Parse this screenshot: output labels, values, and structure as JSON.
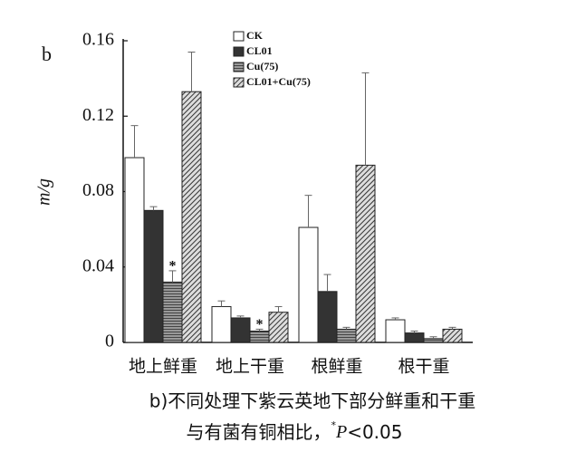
{
  "chart_data": {
    "type": "bar",
    "panel_label": "b",
    "y_label": "m/g",
    "categories": [
      "地上鲜重",
      "地上干重",
      "根鲜重",
      "根干重"
    ],
    "series": [
      {
        "name": "CK",
        "color": "#ffffff",
        "pattern": "solid",
        "values": [
          0.098,
          0.019,
          0.061,
          0.012
        ],
        "errors": [
          0.017,
          0.003,
          0.017,
          0.001
        ],
        "annotations": [
          null,
          null,
          null,
          null
        ]
      },
      {
        "name": "CL01",
        "color": "#333333",
        "pattern": "solid",
        "values": [
          0.07,
          0.013,
          0.027,
          0.005
        ],
        "errors": [
          0.002,
          0.001,
          0.009,
          0.001
        ],
        "annotations": [
          null,
          null,
          null,
          null
        ]
      },
      {
        "name": "Cu(75)",
        "color": "#777777",
        "pattern": "horizontal",
        "values": [
          0.032,
          0.006,
          0.007,
          0.002
        ],
        "errors": [
          0.006,
          0.001,
          0.001,
          0.001
        ],
        "annotations": [
          "*",
          "*",
          null,
          null
        ]
      },
      {
        "name": "CL01+Cu(75)",
        "color": "#777777",
        "pattern": "diagonal",
        "values": [
          0.133,
          0.016,
          0.094,
          0.007
        ],
        "errors": [
          0.021,
          0.003,
          0.049,
          0.001
        ],
        "annotations": [
          null,
          null,
          null,
          null
        ]
      }
    ],
    "ylim": [
      0,
      0.16
    ],
    "yticks": [
      0,
      0.04,
      0.08,
      0.12,
      0.16
    ],
    "caption": [
      "b)不同处理下紫云英地下部分鲜重和干重",
      [
        "与有菌有铜相比，",
        "*",
        "P",
        "<0.05"
      ]
    ]
  }
}
